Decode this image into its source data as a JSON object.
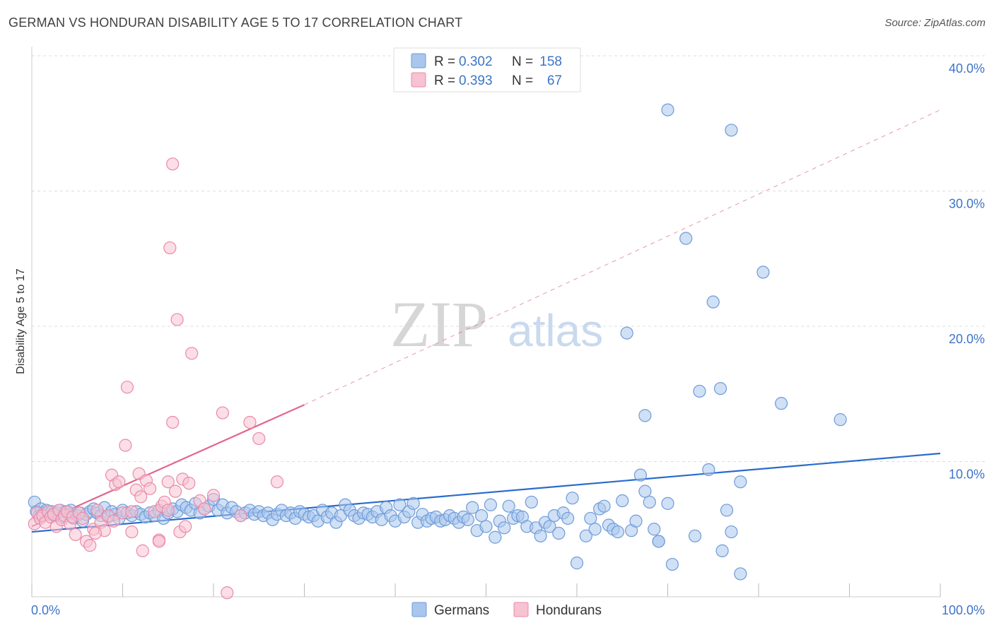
{
  "title": "GERMAN VS HONDURAN DISABILITY AGE 5 TO 17 CORRELATION CHART",
  "source": "Source: ZipAtlas.com",
  "watermark": {
    "part1": "ZIP",
    "part2": "atlas"
  },
  "colors": {
    "blue_fill": "#a9c6ec",
    "blue_stroke": "#6e9bd8",
    "blue_line": "#2a6bcc",
    "pink_fill": "#f7c2d2",
    "pink_stroke": "#e98aa9",
    "pink_line": "#e2668f",
    "tick_text": "#3d74c9",
    "grid": "#dddddd"
  },
  "legend": {
    "rows": [
      {
        "r_label": "R =",
        "r_value": "0.302",
        "n_label": "N =",
        "n_value": "158"
      },
      {
        "r_label": "R =",
        "r_value": "0.393",
        "n_label": "N =",
        "n_value": "67"
      }
    ]
  },
  "chart_data": {
    "type": "scatter",
    "title": "GERMAN VS HONDURAN DISABILITY AGE 5 TO 17 CORRELATION CHART",
    "xlabel": "",
    "ylabel": "Disability Age 5 to 17",
    "xlim": [
      0,
      100
    ],
    "ylim": [
      0,
      40
    ],
    "x_tick_labels": [
      "0.0%",
      "100.0%"
    ],
    "y_ticks": [
      10,
      20,
      30,
      40
    ],
    "y_tick_labels": [
      "10.0%",
      "20.0%",
      "30.0%",
      "40.0%"
    ],
    "grid": true,
    "legend_position": "top-center",
    "series": [
      {
        "name": "Germans",
        "color": "#a9c6ec",
        "trend": {
          "x": [
            0,
            100
          ],
          "y": [
            4.8,
            10.6
          ],
          "style": "solid"
        },
        "points": [
          [
            0.3,
            7.0
          ],
          [
            0.5,
            6.3
          ],
          [
            0.8,
            6.0
          ],
          [
            1.0,
            6.5
          ],
          [
            1.3,
            6.2
          ],
          [
            1.6,
            6.4
          ],
          [
            1.9,
            6.1
          ],
          [
            2.2,
            6.3
          ],
          [
            2.5,
            6.0
          ],
          [
            2.8,
            6.2
          ],
          [
            3.1,
            6.4
          ],
          [
            3.4,
            5.9
          ],
          [
            3.7,
            6.3
          ],
          [
            4.0,
            6.1
          ],
          [
            4.3,
            6.4
          ],
          [
            4.6,
            5.8
          ],
          [
            5.0,
            6.0
          ],
          [
            5.3,
            6.2
          ],
          [
            5.6,
            5.6
          ],
          [
            6.0,
            6.1
          ],
          [
            6.4,
            6.3
          ],
          [
            6.8,
            6.5
          ],
          [
            7.2,
            6.2
          ],
          [
            7.6,
            6.0
          ],
          [
            8.0,
            6.6
          ],
          [
            8.4,
            5.9
          ],
          [
            8.8,
            6.3
          ],
          [
            9.2,
            6.1
          ],
          [
            9.6,
            5.8
          ],
          [
            10.0,
            6.4
          ],
          [
            10.5,
            6.2
          ],
          [
            11.0,
            6.0
          ],
          [
            11.5,
            6.3
          ],
          [
            12.0,
            6.1
          ],
          [
            12.5,
            5.9
          ],
          [
            13.0,
            6.2
          ],
          [
            13.5,
            6.0
          ],
          [
            14.0,
            6.4
          ],
          [
            14.5,
            5.8
          ],
          [
            15.0,
            6.2
          ],
          [
            15.5,
            6.5
          ],
          [
            16.0,
            6.3
          ],
          [
            16.5,
            6.8
          ],
          [
            17.0,
            6.6
          ],
          [
            17.5,
            6.4
          ],
          [
            18.0,
            6.9
          ],
          [
            18.5,
            6.2
          ],
          [
            19.0,
            6.5
          ],
          [
            19.5,
            6.7
          ],
          [
            20.0,
            7.2
          ],
          [
            20.5,
            6.4
          ],
          [
            21.0,
            6.8
          ],
          [
            21.5,
            6.2
          ],
          [
            22.0,
            6.6
          ],
          [
            22.5,
            6.3
          ],
          [
            23.0,
            6.0
          ],
          [
            23.5,
            6.2
          ],
          [
            24.0,
            6.4
          ],
          [
            24.5,
            6.1
          ],
          [
            25.0,
            6.3
          ],
          [
            25.5,
            6.0
          ],
          [
            26.0,
            6.2
          ],
          [
            26.5,
            5.7
          ],
          [
            27.0,
            6.1
          ],
          [
            27.5,
            6.4
          ],
          [
            28.0,
            6.0
          ],
          [
            28.5,
            6.2
          ],
          [
            29.0,
            5.8
          ],
          [
            29.5,
            6.3
          ],
          [
            30.0,
            6.1
          ],
          [
            30.5,
            5.9
          ],
          [
            31.0,
            6.0
          ],
          [
            31.5,
            5.6
          ],
          [
            32.0,
            6.4
          ],
          [
            32.5,
            5.9
          ],
          [
            33.0,
            6.2
          ],
          [
            33.5,
            5.5
          ],
          [
            34.0,
            6.0
          ],
          [
            34.5,
            6.8
          ],
          [
            35.0,
            6.4
          ],
          [
            35.5,
            6.0
          ],
          [
            36.0,
            5.8
          ],
          [
            36.5,
            6.2
          ],
          [
            37.0,
            6.1
          ],
          [
            37.5,
            5.9
          ],
          [
            38.0,
            6.3
          ],
          [
            38.5,
            5.7
          ],
          [
            39.0,
            6.6
          ],
          [
            39.5,
            6.0
          ],
          [
            40.0,
            5.6
          ],
          [
            40.5,
            6.8
          ],
          [
            41.0,
            5.9
          ],
          [
            41.5,
            6.3
          ],
          [
            42.0,
            6.9
          ],
          [
            42.5,
            5.5
          ],
          [
            43.0,
            6.1
          ],
          [
            43.5,
            5.6
          ],
          [
            44.0,
            5.8
          ],
          [
            44.5,
            5.9
          ],
          [
            45.0,
            5.6
          ],
          [
            45.5,
            5.7
          ],
          [
            46.0,
            6.0
          ],
          [
            46.5,
            5.8
          ],
          [
            47.0,
            5.5
          ],
          [
            47.5,
            5.9
          ],
          [
            48.0,
            5.7
          ],
          [
            48.5,
            6.6
          ],
          [
            49.0,
            4.9
          ],
          [
            49.5,
            6.0
          ],
          [
            50.0,
            5.2
          ],
          [
            50.5,
            6.8
          ],
          [
            51.0,
            4.4
          ],
          [
            51.5,
            5.6
          ],
          [
            52.0,
            5.1
          ],
          [
            52.5,
            6.7
          ],
          [
            53.0,
            5.8
          ],
          [
            53.5,
            6.0
          ],
          [
            54.0,
            5.9
          ],
          [
            54.5,
            5.2
          ],
          [
            55.0,
            7.0
          ],
          [
            55.5,
            5.1
          ],
          [
            56.0,
            4.5
          ],
          [
            56.5,
            5.5
          ],
          [
            57.0,
            5.2
          ],
          [
            57.5,
            6.0
          ],
          [
            58.0,
            4.7
          ],
          [
            58.5,
            6.2
          ],
          [
            59.0,
            5.8
          ],
          [
            59.5,
            7.3
          ],
          [
            60.0,
            2.5
          ],
          [
            61.0,
            4.5
          ],
          [
            61.5,
            5.8
          ],
          [
            62.0,
            5.0
          ],
          [
            62.5,
            6.5
          ],
          [
            63.0,
            6.7
          ],
          [
            63.5,
            5.3
          ],
          [
            64.0,
            5.0
          ],
          [
            64.5,
            4.8
          ],
          [
            65.0,
            7.1
          ],
          [
            66.0,
            4.9
          ],
          [
            66.5,
            5.6
          ],
          [
            67.0,
            9.0
          ],
          [
            67.5,
            7.8
          ],
          [
            68.0,
            7.0
          ],
          [
            68.5,
            5.0
          ],
          [
            69.0,
            4.1
          ],
          [
            70.0,
            6.9
          ],
          [
            70.5,
            2.4
          ],
          [
            73.0,
            4.5
          ],
          [
            74.5,
            9.4
          ],
          [
            76.5,
            6.4
          ],
          [
            77.0,
            4.8
          ],
          [
            78.0,
            8.5
          ],
          [
            69.0,
            4.1
          ],
          [
            76.0,
            3.4
          ],
          [
            78.0,
            1.7
          ],
          [
            70.0,
            36.0
          ],
          [
            77.0,
            34.5
          ],
          [
            72.0,
            26.5
          ],
          [
            80.5,
            24.0
          ],
          [
            75.0,
            21.8
          ],
          [
            65.5,
            19.5
          ],
          [
            73.5,
            15.2
          ],
          [
            75.8,
            15.4
          ],
          [
            82.5,
            14.3
          ],
          [
            67.5,
            13.4
          ],
          [
            89.0,
            13.1
          ]
        ]
      },
      {
        "name": "Hondurans",
        "color": "#f7c2d2",
        "trend": {
          "x": [
            0,
            30
          ],
          "y": [
            5.2,
            14.2
          ],
          "style": "solid",
          "extended": {
            "x": [
              30,
              100
            ],
            "y": [
              14.2,
              36.0
            ],
            "style": "dashed"
          }
        },
        "points": [
          [
            0.3,
            5.4
          ],
          [
            0.6,
            6.2
          ],
          [
            0.9,
            5.8
          ],
          [
            1.2,
            6.0
          ],
          [
            1.5,
            5.5
          ],
          [
            1.8,
            6.3
          ],
          [
            2.1,
            5.9
          ],
          [
            2.4,
            6.1
          ],
          [
            2.7,
            5.2
          ],
          [
            3.0,
            6.4
          ],
          [
            3.3,
            5.7
          ],
          [
            3.6,
            6.0
          ],
          [
            3.9,
            6.3
          ],
          [
            4.2,
            5.4
          ],
          [
            4.5,
            5.9
          ],
          [
            4.8,
            4.6
          ],
          [
            5.2,
            6.2
          ],
          [
            5.6,
            5.8
          ],
          [
            6.0,
            4.1
          ],
          [
            6.4,
            3.8
          ],
          [
            6.8,
            5.0
          ],
          [
            7.2,
            6.4
          ],
          [
            7.6,
            5.5
          ],
          [
            8.0,
            4.9
          ],
          [
            8.4,
            6.0
          ],
          [
            8.8,
            9.0
          ],
          [
            9.2,
            8.3
          ],
          [
            9.6,
            8.5
          ],
          [
            10.0,
            6.2
          ],
          [
            10.3,
            11.2
          ],
          [
            10.5,
            15.5
          ],
          [
            11.0,
            4.8
          ],
          [
            11.5,
            7.9
          ],
          [
            11.8,
            9.1
          ],
          [
            12.2,
            3.4
          ],
          [
            12.6,
            8.6
          ],
          [
            13.0,
            8.0
          ],
          [
            13.5,
            6.3
          ],
          [
            14.0,
            4.2
          ],
          [
            14.3,
            6.7
          ],
          [
            14.6,
            7.0
          ],
          [
            15.0,
            8.5
          ],
          [
            15.0,
            6.4
          ],
          [
            15.2,
            25.8
          ],
          [
            15.5,
            32.0
          ],
          [
            15.8,
            7.8
          ],
          [
            16.0,
            20.5
          ],
          [
            16.3,
            4.8
          ],
          [
            16.6,
            8.7
          ],
          [
            16.9,
            5.2
          ],
          [
            17.3,
            8.4
          ],
          [
            17.6,
            18.0
          ],
          [
            20.0,
            7.5
          ],
          [
            21.0,
            13.6
          ],
          [
            21.5,
            0.3
          ],
          [
            23.0,
            6.0
          ],
          [
            24.0,
            12.9
          ],
          [
            25.0,
            11.7
          ],
          [
            27.0,
            8.5
          ],
          [
            18.5,
            7.1
          ],
          [
            19.0,
            6.5
          ],
          [
            14.0,
            4.1
          ],
          [
            11.0,
            6.3
          ],
          [
            12.0,
            7.4
          ],
          [
            9.0,
            5.6
          ],
          [
            7.0,
            4.7
          ],
          [
            15.5,
            12.9
          ]
        ]
      }
    ]
  },
  "bottom_legend": {
    "items": [
      "Germans",
      "Hondurans"
    ]
  }
}
